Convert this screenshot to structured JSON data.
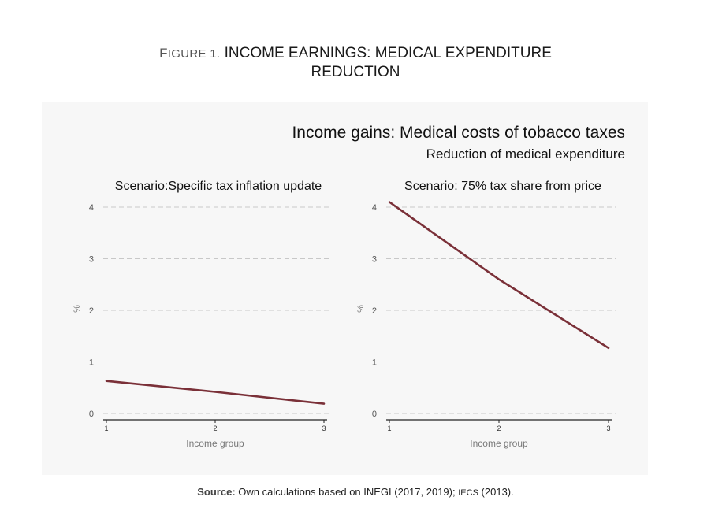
{
  "figure": {
    "label": "Figure 1.",
    "title_line1": "INCOME EARNINGS: MEDICAL EXPENDITURE",
    "title_line2": "REDUCTION"
  },
  "source": {
    "label": "Source:",
    "text_before": "Own calculations based on INEGI (2017, 2019);",
    "text_sc": "IECS",
    "text_after": "(2013)."
  },
  "colors": {
    "line": "#7a3038",
    "panel_bg": "#f7f7f7",
    "grid": "#c8c8c8"
  },
  "chart_data": [
    {
      "type": "line",
      "title": "Income gains: Medical costs of tobacco taxes",
      "subtitle": "Reduction of medical expenditure",
      "panel_title": "Scenario:Specific tax inflation update",
      "xlabel": "Income group",
      "ylabel": "%",
      "x": [
        1,
        2,
        3
      ],
      "values": [
        0.63,
        0.42,
        0.19
      ],
      "xlim": [
        1,
        3
      ],
      "ylim": [
        0,
        4
      ],
      "yticks": [
        0,
        1,
        2,
        3,
        4
      ],
      "xticks": [
        1,
        2,
        3
      ],
      "grid": true
    },
    {
      "type": "line",
      "panel_title": "Scenario: 75% tax share from price",
      "xlabel": "Income group",
      "ylabel": "%",
      "x": [
        1,
        2,
        3
      ],
      "values": [
        4.1,
        2.6,
        1.27
      ],
      "xlim": [
        1,
        3
      ],
      "ylim": [
        0,
        4
      ],
      "yticks": [
        0,
        1,
        2,
        3,
        4
      ],
      "xticks": [
        1,
        2,
        3
      ],
      "grid": true
    }
  ]
}
